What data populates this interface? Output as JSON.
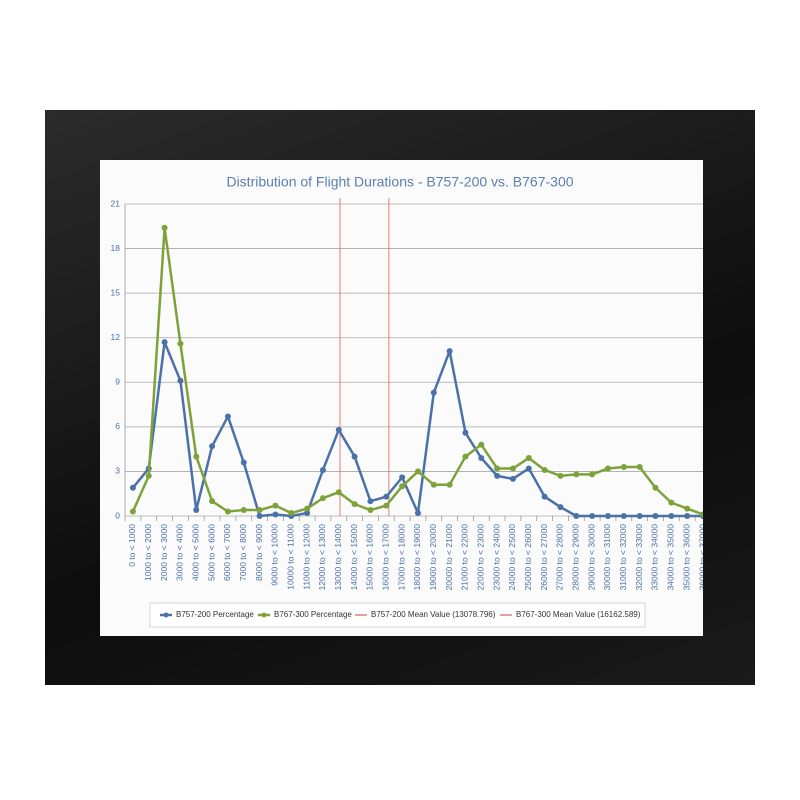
{
  "chart_data": {
    "type": "line",
    "title": "Distribution of Flight Durations - B757-200 vs. B767-300",
    "x": [
      0,
      1000,
      2000,
      3000,
      4000,
      5000,
      6000,
      7000,
      8000,
      9000,
      10000,
      11000,
      12000,
      13000,
      14000,
      15000,
      16000,
      17000,
      18000,
      19000,
      20000,
      21000,
      22000,
      23000,
      24000,
      25000,
      26000,
      27000,
      28000,
      29000,
      30000,
      31000,
      32000,
      33000,
      34000,
      35000,
      36000
    ],
    "categories": [
      "0 to < 1000",
      "1000 to < 2000",
      "2000 to < 3000",
      "3000 to < 4000",
      "4000 to < 5000",
      "5000 to < 6000",
      "6000 to < 7000",
      "7000 to < 8000",
      "8000 to < 9000",
      "9000 to < 10000",
      "10000 to < 11000",
      "11000 to < 12000",
      "12000 to < 13000",
      "13000 to < 14000",
      "14000 to < 15000",
      "15000 to < 16000",
      "16000 to < 17000",
      "17000 to < 18000",
      "18000 to < 19000",
      "19000 to < 20000",
      "20000 to < 21000",
      "21000 to < 22000",
      "22000 to < 23000",
      "23000 to < 24000",
      "24000 to < 25000",
      "25000 to < 26000",
      "26000 to < 27000",
      "27000 to < 28000",
      "28000 to < 29000",
      "29000 to < 30000",
      "30000 to < 31000",
      "31000 to < 32000",
      "32000 to < 33000",
      "33000 to < 34000",
      "34000 to < 35000",
      "35000 to < 36000",
      "36000 to < 37000"
    ],
    "series": [
      {
        "name": "B757-200 Percentage",
        "color": "#4a72a8",
        "values": [
          1.9,
          3.2,
          11.7,
          9.1,
          0.4,
          4.7,
          6.7,
          3.6,
          0,
          0.1,
          0,
          0.2,
          3.1,
          5.8,
          4.0,
          1.0,
          1.3,
          2.6,
          0.2,
          8.3,
          11.1,
          5.6,
          3.9,
          2.7,
          2.5,
          3.2,
          1.3,
          0.6,
          0,
          0,
          0,
          0,
          0,
          0,
          0,
          0,
          0
        ]
      },
      {
        "name": "B767-300 Percentage",
        "color": "#7ea23a",
        "values": [
          0.3,
          2.7,
          19.4,
          11.6,
          4.0,
          1.0,
          0.3,
          0.4,
          0.4,
          0.7,
          0.2,
          0.5,
          1.2,
          1.6,
          0.8,
          0.4,
          0.7,
          2.0,
          3.0,
          2.1,
          2.1,
          4.0,
          4.8,
          3.2,
          3.2,
          3.9,
          3.1,
          2.7,
          2.8,
          2.8,
          3.2,
          3.3,
          3.3,
          1.9,
          0.9,
          0.5,
          0.1
        ]
      }
    ],
    "mean_lines": [
      {
        "name": "B757-200 Mean Value (13078.796)",
        "value": 13078.796,
        "color": "#e87a7a"
      },
      {
        "name": "B767-300 Mean Value (16162.589)",
        "value": 16162.589,
        "color": "#e87a7a"
      }
    ],
    "xlim": [
      -500,
      36000
    ],
    "ylim": [
      0,
      21
    ],
    "yticks": [
      0,
      3,
      6,
      9,
      12,
      15,
      18,
      21
    ],
    "grid": true
  }
}
